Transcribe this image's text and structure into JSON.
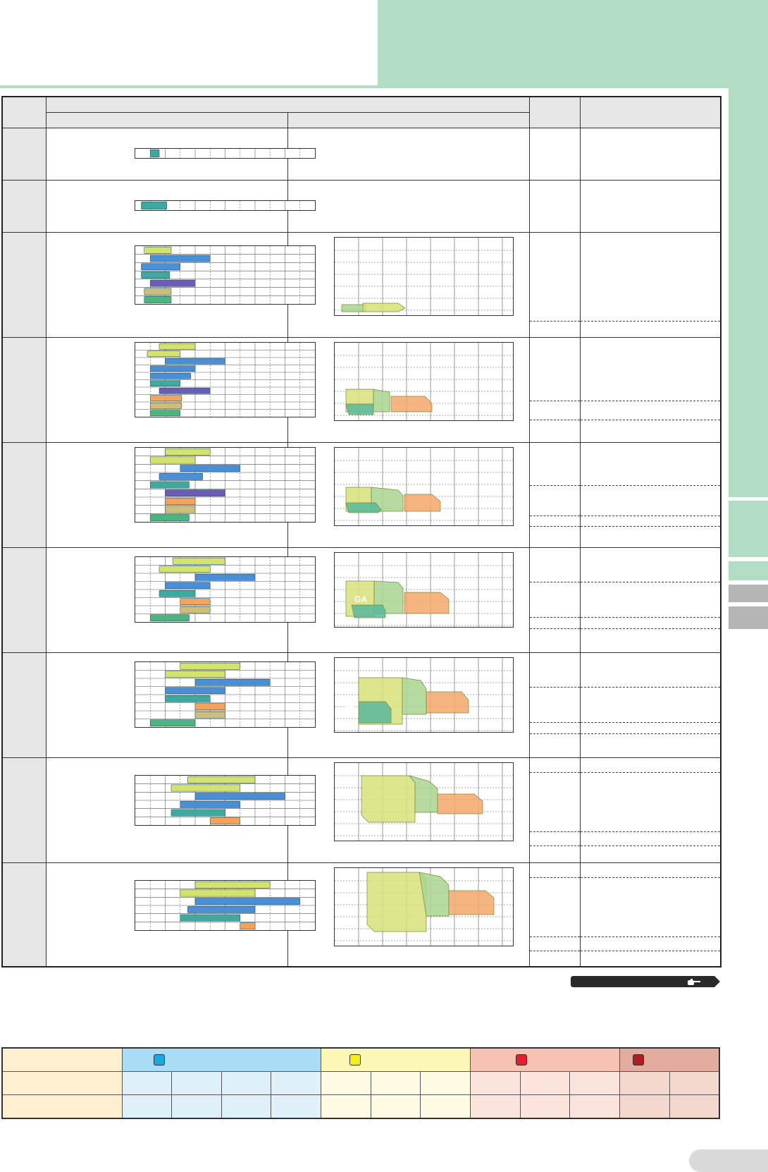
{
  "colors": {
    "banner": "#b3ddc2",
    "header_gray": "#e6e6e6",
    "blue_group": "#a9dcf5",
    "blue_cell": "#dff0fb",
    "yellow_group": "#fcf7b6",
    "yellow_cell": "#fefbe2",
    "red_group": "#f6c3b3",
    "red_cell": "#fce4dc",
    "darkred_group": "#e3ac9e",
    "darkred_cell": "#f4d8d0",
    "label_cell": "#fdefd0",
    "blue_chip": "#19a8e0",
    "yellow_chip": "#f7ec1c",
    "red_chip": "#e41e2d",
    "darkred_chip": "#ad1f24"
  },
  "icons": {
    "ref_button": "pointing-hand-icon",
    "legend_chips": [
      "blue-square-icon",
      "yellow-square-icon",
      "red-square-icon",
      "darkred-square-icon"
    ]
  },
  "labels": {
    "area_label_1": "GA",
    "area_label_2": "GA"
  }
}
